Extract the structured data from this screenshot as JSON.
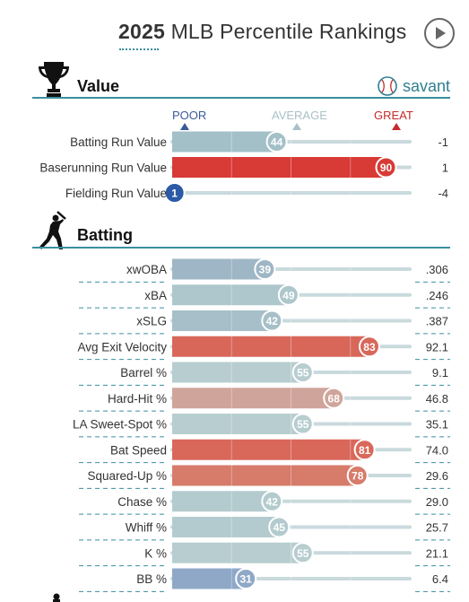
{
  "header": {
    "title_year": "2025",
    "title_rest": "MLB Percentile Rankings",
    "play_icon": "play-circle-icon"
  },
  "value_section": {
    "title": "Value",
    "icon": "trophy-icon",
    "brand": "savant",
    "brand_icon": "baseball-icon"
  },
  "batting_section": {
    "title": "Batting",
    "icon": "batter-icon"
  },
  "scale": {
    "poor": "POOR",
    "average": "AVERAGE",
    "great": "GREAT",
    "poor_color": "#3c5a99",
    "average_color": "#a9c1c7",
    "great_color": "#c52b2b"
  },
  "chart_data": {
    "type": "bar",
    "orientation": "horizontal",
    "xlim": [
      0,
      100
    ],
    "grid": true,
    "sections": [
      {
        "name": "Value",
        "rows": [
          {
            "label": "Batting Run Value",
            "percentile": 44,
            "stat": "-1",
            "color": "#a3c0c8"
          },
          {
            "label": "Baserunning Run Value",
            "percentile": 90,
            "stat": "1",
            "color": "#d83a36"
          },
          {
            "label": "Fielding Run Value",
            "percentile": 1,
            "stat": "-4",
            "color": "#2c5aa6"
          }
        ]
      },
      {
        "name": "Batting",
        "rows": [
          {
            "label": "xwOBA",
            "percentile": 39,
            "stat": ".306",
            "color": "#9fb6c6"
          },
          {
            "label": "xBA",
            "percentile": 49,
            "stat": ".246",
            "color": "#adc7cc"
          },
          {
            "label": "xSLG",
            "percentile": 42,
            "stat": ".387",
            "color": "#a6bfc8"
          },
          {
            "label": "Avg Exit Velocity",
            "percentile": 83,
            "stat": "92.1",
            "color": "#d8675a"
          },
          {
            "label": "Barrel %",
            "percentile": 55,
            "stat": "9.1",
            "color": "#b7cdcf"
          },
          {
            "label": "Hard-Hit %",
            "percentile": 68,
            "stat": "46.8",
            "color": "#cfa49a"
          },
          {
            "label": "LA Sweet-Spot %",
            "percentile": 55,
            "stat": "35.1",
            "color": "#b7cdcf"
          },
          {
            "label": "Bat Speed",
            "percentile": 81,
            "stat": "74.0",
            "color": "#d9685a"
          },
          {
            "label": "Squared-Up %",
            "percentile": 78,
            "stat": "29.6",
            "color": "#d77b6b"
          },
          {
            "label": "Chase %",
            "percentile": 42,
            "stat": "29.0",
            "color": "#b3cbce"
          },
          {
            "label": "Whiff %",
            "percentile": 45,
            "stat": "25.7",
            "color": "#b3cbce"
          },
          {
            "label": "K %",
            "percentile": 55,
            "stat": "21.1",
            "color": "#b7cdcf"
          },
          {
            "label": "BB %",
            "percentile": 31,
            "stat": "6.4",
            "color": "#8fa8c8"
          }
        ]
      }
    ]
  }
}
